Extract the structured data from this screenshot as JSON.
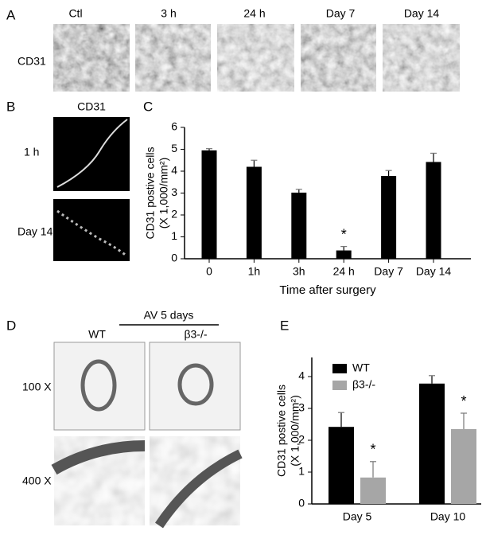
{
  "panels": {
    "A": {
      "label": "A",
      "row_label": "CD31",
      "columns": [
        "Ctl",
        "3 h",
        "24 h",
        "Day 7",
        "Day 14"
      ]
    },
    "B": {
      "label": "B",
      "title": "CD31",
      "rows": [
        "1 h",
        "Day 14"
      ]
    },
    "C": {
      "label": "C"
    },
    "D": {
      "label": "D",
      "group": "AV 5 days",
      "columns": [
        "WT",
        "β3-/-"
      ],
      "rows": [
        "100 X",
        "400 X"
      ]
    },
    "E": {
      "label": "E"
    }
  },
  "chart_data": [
    {
      "type": "bar",
      "categories": [
        "0",
        "1h",
        "3h",
        "24 h",
        "Day 7",
        "Day 14"
      ],
      "values": [
        4.95,
        4.2,
        3.02,
        0.38,
        3.78,
        4.42
      ],
      "errors": [
        0.08,
        0.3,
        0.15,
        0.18,
        0.25,
        0.4
      ],
      "color": "#000000",
      "ylim": [
        0,
        6
      ],
      "yticks": [
        0,
        1,
        2,
        3,
        4,
        5,
        6
      ],
      "y_label": [
        "CD31 postive cells",
        "(X 1,000/mm²)"
      ],
      "x_label": "Time after surgery",
      "annotations": [
        {
          "text": "*",
          "category": "24 h"
        }
      ]
    },
    {
      "type": "bar",
      "categories": [
        "Day 5",
        "Day 10"
      ],
      "series": [
        {
          "name": "WT",
          "color": "#000000",
          "values": [
            2.42,
            3.78
          ],
          "errors": [
            0.45,
            0.25
          ]
        },
        {
          "name": "β3-/-",
          "color": "#a6a6a6",
          "values": [
            0.83,
            2.35
          ],
          "errors": [
            0.5,
            0.5
          ]
        }
      ],
      "ylim": [
        0,
        4.6
      ],
      "yticks": [
        0,
        1,
        2,
        3,
        4
      ],
      "y_label": [
        "CD31 postive cells",
        "(X 1,000/mm²)"
      ],
      "annotations": [
        {
          "text": "*",
          "category": "Day 5",
          "series": "β3-/-"
        },
        {
          "text": "*",
          "category": "Day 10",
          "series": "β3-/-"
        }
      ]
    }
  ]
}
